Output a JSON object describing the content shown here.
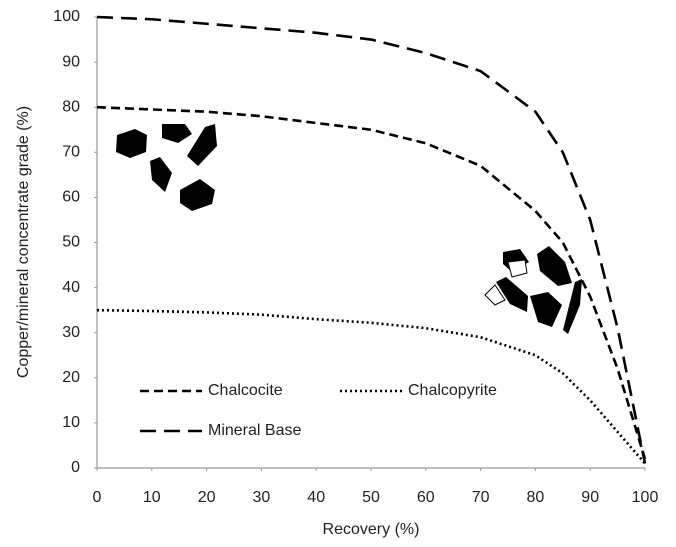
{
  "chart_data": {
    "type": "line",
    "x_label": "Recovery (%)",
    "y_label": "Copper/mineral concentrate grade (%)",
    "x": [
      0,
      10,
      20,
      30,
      40,
      50,
      60,
      70,
      80,
      85,
      90,
      95,
      100
    ],
    "series": [
      {
        "name": "Chalcocite",
        "color": "#000000",
        "style": "dashed",
        "values": [
          80,
          79.5,
          79,
          78,
          76.5,
          75,
          72,
          67,
          57,
          50,
          38,
          22,
          2
        ]
      },
      {
        "name": "Chalcopyrite",
        "color": "#000000",
        "style": "dotted",
        "values": [
          35,
          34.8,
          34.5,
          34,
          33,
          32.2,
          31,
          29,
          25,
          21,
          15,
          8,
          1
        ]
      },
      {
        "name": "Mineral Base",
        "color": "#000000",
        "style": "long-dashed",
        "values": [
          100,
          99.5,
          98.5,
          97.5,
          96.5,
          95,
          92,
          88,
          79,
          70,
          55,
          31,
          1
        ]
      }
    ],
    "xlim": [
      0,
      100
    ],
    "xticks": [
      0,
      10,
      20,
      30,
      40,
      50,
      60,
      70,
      80,
      90,
      100
    ],
    "ylim": [
      0,
      100
    ],
    "yticks": [
      0,
      10,
      20,
      30,
      40,
      50,
      60,
      70,
      80,
      90,
      100
    ],
    "grid": false,
    "legend": "lower left"
  }
}
